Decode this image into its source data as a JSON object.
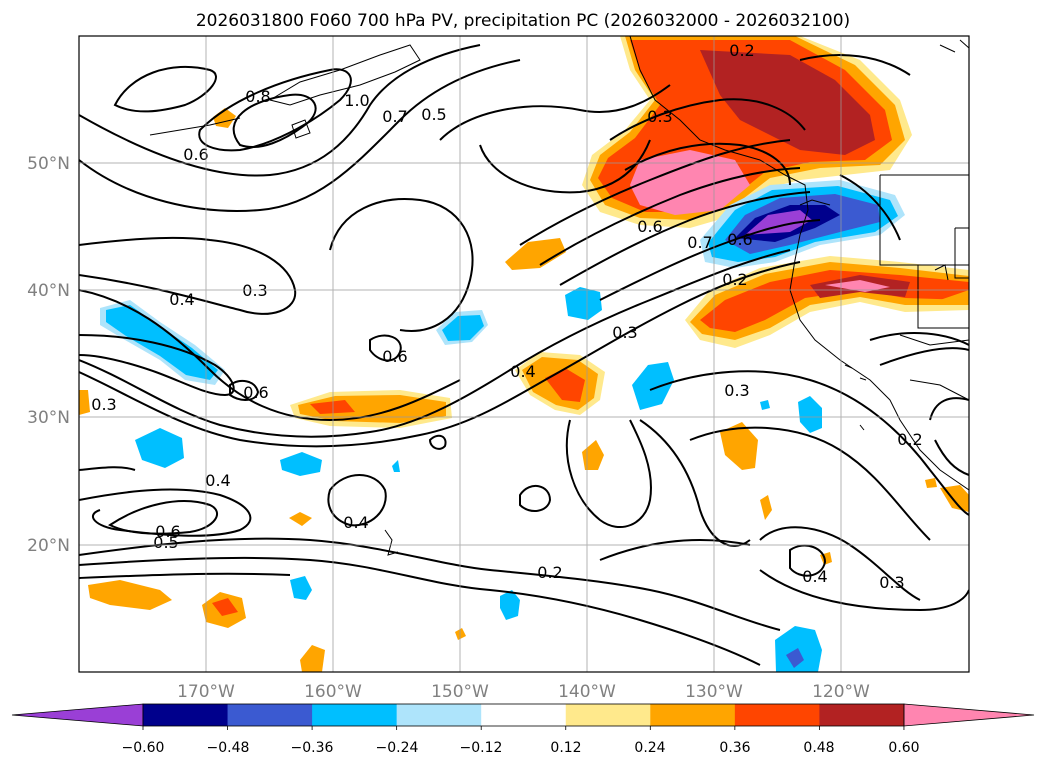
{
  "title": "2026031800 F060 700 hPa PV, precipitation PC (2026032000 - 2026032100)",
  "map": {
    "lon_labels": [
      "170°W",
      "160°W",
      "150°W",
      "140°W",
      "130°W",
      "120°W"
    ],
    "lat_labels": [
      "50°N",
      "40°N",
      "30°N",
      "20°N"
    ],
    "extent": {
      "lon": [
        -180,
        -110
      ],
      "lat": [
        10,
        60
      ]
    },
    "grid": true
  },
  "contour_labels": [
    "0.2",
    "0.3",
    "0.4",
    "0.5",
    "0.6",
    "0.7",
    "0.8",
    "1.0"
  ],
  "colorbar": {
    "tick_labels": [
      "−0.60",
      "−0.48",
      "−0.36",
      "−0.24",
      "−0.12",
      "0.12",
      "0.24",
      "0.36",
      "0.48",
      "0.60"
    ],
    "colors": [
      "#9a3fd6",
      "#00008c",
      "#3b5ad1",
      "#00bfff",
      "#aee4fb",
      "#ffffff",
      "#ffe98c",
      "#ffa500",
      "#ff4500",
      "#b22222",
      "#ff85b0"
    ]
  }
}
